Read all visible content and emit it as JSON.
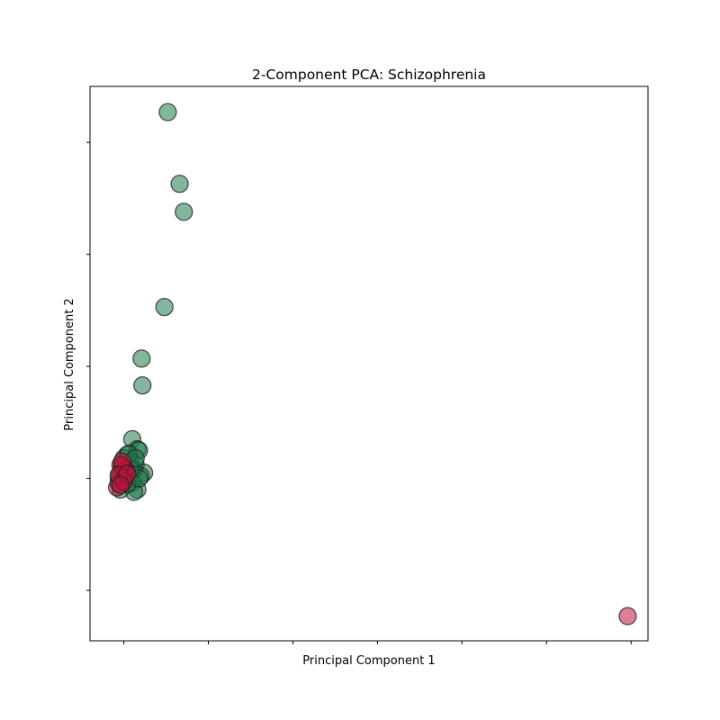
{
  "chart_data": {
    "type": "scatter",
    "title": "2-Component PCA: Schizophrenia",
    "xlabel": "Principal Component 1",
    "ylabel": "Principal Component 2",
    "xlim": [
      -0.2,
      3.1
    ],
    "ylim": [
      -1.45,
      3.5
    ],
    "x_ticks": [
      0,
      0.5,
      1.0,
      1.5,
      2.0,
      2.5,
      3.0
    ],
    "y_ticks": [
      -1.0,
      0,
      1.0,
      2.0,
      3.0
    ],
    "tick_labels_shown": false,
    "grid": false,
    "legend": "none",
    "series": [
      {
        "color": "#1f7a4a",
        "opacity": 0.55,
        "points": [
          [
            0.26,
            3.27
          ],
          [
            0.33,
            2.63
          ],
          [
            0.355,
            2.38
          ],
          [
            0.24,
            1.53
          ],
          [
            0.105,
            1.07
          ],
          [
            0.11,
            0.83
          ],
          [
            0.05,
            0.35
          ],
          [
            0.08,
            0.26
          ],
          [
            0.09,
            0.25
          ],
          [
            0.02,
            0.21
          ],
          [
            0.04,
            0.15
          ],
          [
            0.0,
            0.18
          ],
          [
            0.07,
            0.12
          ],
          [
            0.12,
            0.05
          ],
          [
            0.1,
            0.02
          ],
          [
            0.06,
            0.08
          ],
          [
            0.03,
            0.02
          ],
          [
            0.0,
            0.05
          ],
          [
            -0.03,
            0.0
          ],
          [
            0.01,
            -0.02
          ],
          [
            0.05,
            -0.04
          ],
          [
            0.08,
            -0.1
          ],
          [
            0.06,
            -0.12
          ],
          [
            -0.02,
            -0.1
          ],
          [
            0.02,
            -0.05
          ],
          [
            0.09,
            0.0
          ],
          [
            0.04,
            0.08
          ],
          [
            -0.01,
            0.12
          ],
          [
            0.03,
            0.22
          ],
          [
            0.07,
            0.18
          ]
        ]
      },
      {
        "color": "#c0143c",
        "opacity": 0.55,
        "points": [
          [
            2.98,
            -1.23
          ],
          [
            -0.01,
            0.1
          ],
          [
            -0.02,
            0.05
          ],
          [
            -0.04,
            -0.08
          ],
          [
            0.0,
            0.0
          ],
          [
            -0.03,
            -0.04
          ],
          [
            0.01,
            0.08
          ],
          [
            -0.02,
            0.12
          ],
          [
            0.0,
            -0.03
          ],
          [
            -0.01,
            0.15
          ],
          [
            -0.03,
            0.03
          ],
          [
            0.02,
            0.04
          ],
          [
            -0.02,
            -0.06
          ]
        ]
      }
    ]
  }
}
